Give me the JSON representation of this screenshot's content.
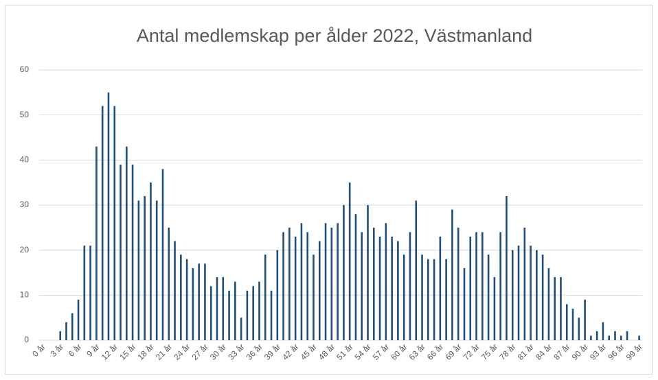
{
  "chart_data": {
    "type": "bar",
    "title": "Antal medlemskap per ålder 2022, Västmanland",
    "categories": [
      "0 år",
      null,
      null,
      "3 år",
      null,
      null,
      "6 år",
      null,
      null,
      "9 år",
      null,
      null,
      "12 år",
      null,
      null,
      "15 år",
      null,
      null,
      "18 år",
      null,
      null,
      "21 år",
      null,
      null,
      "24 år",
      null,
      null,
      "27 år",
      null,
      null,
      "30 år",
      null,
      null,
      "33 år",
      null,
      null,
      "36 år",
      null,
      null,
      "39 år",
      null,
      null,
      "42 år",
      null,
      null,
      "45 år",
      null,
      null,
      "48 år",
      null,
      null,
      "51 år",
      null,
      null,
      "54 år",
      null,
      null,
      "57 år",
      null,
      null,
      "60 år",
      null,
      null,
      "63 år",
      null,
      null,
      "66 år",
      null,
      null,
      "69 år",
      null,
      null,
      "72 år",
      null,
      null,
      "75 år",
      null,
      null,
      "78 år",
      null,
      null,
      "81 år",
      null,
      null,
      "84 år",
      null,
      null,
      "87 år",
      null,
      null,
      "90 år",
      null,
      null,
      "93 år",
      null,
      null,
      "96 år",
      null,
      null,
      "99 år"
    ],
    "values": [
      0,
      0,
      0,
      2,
      4,
      6,
      9,
      21,
      21,
      43,
      52,
      55,
      52,
      39,
      43,
      39,
      31,
      32,
      35,
      31,
      38,
      25,
      22,
      19,
      18,
      16,
      17,
      17,
      12,
      14,
      14,
      11,
      13,
      5,
      11,
      12,
      13,
      19,
      11,
      20,
      24,
      25,
      23,
      26,
      24,
      19,
      22,
      26,
      25,
      26,
      30,
      35,
      28,
      24,
      30,
      25,
      23,
      26,
      23,
      22,
      19,
      24,
      31,
      19,
      18,
      18,
      23,
      18,
      29,
      25,
      16,
      23,
      24,
      24,
      19,
      14,
      24,
      32,
      20,
      21,
      25,
      21,
      20,
      19,
      16,
      14,
      14,
      8,
      7,
      5,
      9,
      1,
      2,
      4,
      1,
      2,
      1,
      2,
      0,
      1
    ],
    "color": "#1f4e79",
    "ylim": [
      0,
      60
    ],
    "yticks": [
      0,
      10,
      20,
      30,
      40,
      50,
      60
    ],
    "grid": true
  }
}
